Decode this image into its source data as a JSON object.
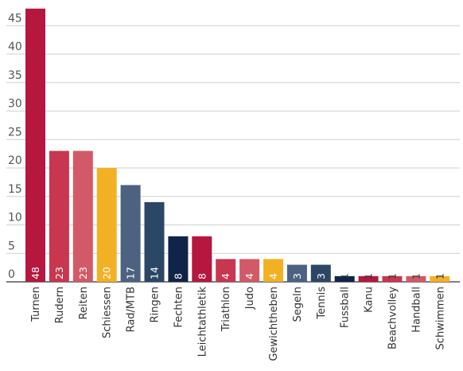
{
  "chart_data": {
    "type": "bar",
    "title": "",
    "xlabel": "",
    "ylabel": "",
    "ylim": [
      0,
      48
    ],
    "yticks": [
      0,
      5,
      10,
      15,
      20,
      25,
      30,
      35,
      40,
      45
    ],
    "grid": true,
    "legend": "none",
    "categories": [
      "Turnen",
      "Rudern",
      "Reiten",
      "Schiessen",
      "Rad/MTB",
      "Ringen",
      "Fechten",
      "Leichtathletik",
      "Triathlon",
      "Judo",
      "Gewichtheben",
      "Segeln",
      "Tennis",
      "Fussball",
      "Kanu",
      "Beachvolley",
      "Handball",
      "Schwimmen"
    ],
    "values": [
      48,
      23,
      23,
      20,
      17,
      14,
      8,
      8,
      4,
      4,
      4,
      3,
      3,
      1,
      1,
      1,
      1,
      1
    ],
    "colors": [
      "#b5173f",
      "#c8374f",
      "#d25a68",
      "#f2b124",
      "#4c6280",
      "#2c4666",
      "#0f2447",
      "#b5173f",
      "#c8374f",
      "#d25a68",
      "#f2b124",
      "#4c6280",
      "#2c4666",
      "#0f2447",
      "#b5173f",
      "#c8374f",
      "#d25a68",
      "#f2b124"
    ],
    "label_colors": [
      "#ffffff",
      "#ffffff",
      "#ffffff",
      "#ffffff",
      "#ffffff",
      "#ffffff",
      "#ffffff",
      "#ffffff",
      "#ffffff",
      "#ffffff",
      "#ffffff",
      "#ffffff",
      "#ffffff",
      "#333333",
      "#333333",
      "#333333",
      "#333333",
      "#333333"
    ]
  }
}
